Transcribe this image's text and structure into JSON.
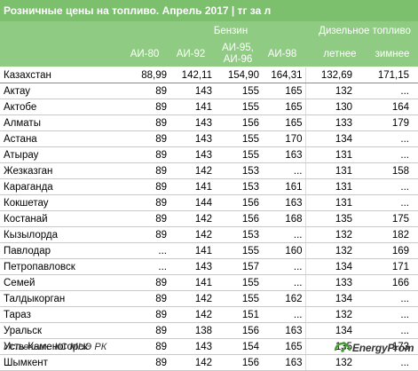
{
  "title": "Розничные цены на топливо. Апрель 2017 | тг за л",
  "header": {
    "group_petrol": "Бензин",
    "group_diesel": "Дизельное топливо",
    "col_ai80": "АИ-80",
    "col_ai92": "АИ-92",
    "col_ai95_line1": "АИ-95,",
    "col_ai95_line2": "АИ-96",
    "col_ai98": "АИ-98",
    "col_summer": "летнее",
    "col_winter": "зимнее"
  },
  "chart_data": {
    "type": "table",
    "title": "Розничные цены на топливо. Апрель 2017 | тг за л",
    "columns": [
      "АИ-80",
      "АИ-92",
      "АИ-95, АИ-96",
      "АИ-98",
      "летнее",
      "зимнее"
    ],
    "rows": [
      {
        "name": "Казахстан",
        "values": [
          "88,99",
          "142,11",
          "154,90",
          "164,31",
          "132,69",
          "171,15"
        ]
      },
      {
        "name": "Актау",
        "values": [
          "89",
          "143",
          "155",
          "165",
          "132",
          "..."
        ]
      },
      {
        "name": "Актобе",
        "values": [
          "89",
          "141",
          "155",
          "165",
          "130",
          "164"
        ]
      },
      {
        "name": "Алматы",
        "values": [
          "89",
          "143",
          "156",
          "165",
          "133",
          "179"
        ]
      },
      {
        "name": "Астана",
        "values": [
          "89",
          "143",
          "155",
          "170",
          "134",
          "..."
        ]
      },
      {
        "name": "Атырау",
        "values": [
          "89",
          "143",
          "155",
          "163",
          "131",
          "..."
        ]
      },
      {
        "name": "Жезказган",
        "values": [
          "89",
          "142",
          "153",
          "...",
          "131",
          "158"
        ]
      },
      {
        "name": "Караганда",
        "values": [
          "89",
          "141",
          "153",
          "161",
          "131",
          "..."
        ]
      },
      {
        "name": "Кокшетау",
        "values": [
          "89",
          "144",
          "156",
          "163",
          "131",
          "..."
        ]
      },
      {
        "name": "Костанай",
        "values": [
          "89",
          "142",
          "156",
          "168",
          "135",
          "175"
        ]
      },
      {
        "name": "Кызылорда",
        "values": [
          "89",
          "142",
          "153",
          "...",
          "132",
          "182"
        ]
      },
      {
        "name": "Павлодар",
        "values": [
          "...",
          "141",
          "155",
          "160",
          "132",
          "169"
        ]
      },
      {
        "name": "Петропавловск",
        "values": [
          "...",
          "143",
          "157",
          "...",
          "134",
          "171"
        ]
      },
      {
        "name": "Семей",
        "values": [
          "89",
          "141",
          "155",
          "...",
          "133",
          "166"
        ]
      },
      {
        "name": "Талдыкорган",
        "values": [
          "89",
          "142",
          "155",
          "162",
          "134",
          "..."
        ]
      },
      {
        "name": "Тараз",
        "values": [
          "89",
          "142",
          "151",
          "...",
          "132",
          "..."
        ]
      },
      {
        "name": "Уральск",
        "values": [
          "89",
          "138",
          "156",
          "163",
          "134",
          "..."
        ]
      },
      {
        "name": "Усть-Каменогорск",
        "values": [
          "89",
          "143",
          "154",
          "165",
          "135",
          "173"
        ]
      },
      {
        "name": "Шымкент",
        "values": [
          "89",
          "142",
          "156",
          "163",
          "132",
          "..."
        ]
      }
    ]
  },
  "footer": {
    "source": "Источник: КС МНЭ РК",
    "logo": "EnergyProm"
  },
  "colors": {
    "title_bg": "#7cc06d",
    "header_bg": "#8fcb82",
    "logo_icon": "#4a9a3a"
  }
}
